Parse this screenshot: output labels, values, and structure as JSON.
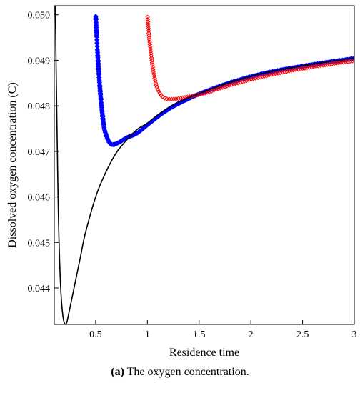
{
  "chart_data": {
    "type": "line",
    "title": "",
    "xlabel": "Residence time",
    "ylabel": "Dissolved oxygen concentration (C)",
    "xlim": [
      0.1,
      3.0
    ],
    "ylim": [
      0.0432,
      0.0502
    ],
    "xticks": [
      {
        "value": 0.5,
        "label": "0.5"
      },
      {
        "value": 1.0,
        "label": "1"
      },
      {
        "value": 1.5,
        "label": "1.5"
      },
      {
        "value": 2.0,
        "label": "2"
      },
      {
        "value": 2.5,
        "label": "2.5"
      },
      {
        "value": 3.0,
        "label": "3"
      }
    ],
    "yticks": [
      {
        "value": 0.044,
        "label": "0.044"
      },
      {
        "value": 0.045,
        "label": "0.045"
      },
      {
        "value": 0.046,
        "label": "0.046"
      },
      {
        "value": 0.047,
        "label": "0.047"
      },
      {
        "value": 0.048,
        "label": "0.048"
      },
      {
        "value": 0.049,
        "label": "0.049"
      },
      {
        "value": 0.05,
        "label": "0.050"
      }
    ],
    "grid": false,
    "series": [
      {
        "color": "#000000",
        "style": "solid-line",
        "x": [
          0.11,
          0.12,
          0.14,
          0.16,
          0.18,
          0.2,
          0.22,
          0.25,
          0.3,
          0.35,
          0.4,
          0.5,
          0.6,
          0.7,
          0.8,
          0.9,
          1.0,
          1.1,
          1.2,
          1.3,
          1.4,
          1.5,
          1.75,
          2.0,
          2.25,
          2.5,
          2.75,
          3.0
        ],
        "y": [
          0.0502,
          0.0485,
          0.0456,
          0.0441,
          0.04345,
          0.04322,
          0.04324,
          0.04355,
          0.0441,
          0.04465,
          0.0452,
          0.046,
          0.04655,
          0.04697,
          0.04725,
          0.04748,
          0.04762,
          0.0478,
          0.04795,
          0.04808,
          0.04818,
          0.04827,
          0.04848,
          0.04865,
          0.04878,
          0.04888,
          0.04897,
          0.04905
        ]
      },
      {
        "color": "#0000ff",
        "style": "diamond-markers",
        "x": [
          0.5,
          0.52,
          0.55,
          0.58,
          0.6,
          0.63,
          0.66,
          0.7,
          0.75,
          0.8,
          0.9,
          1.0,
          1.1,
          1.2,
          1.3,
          1.4,
          1.5,
          1.75,
          2.0,
          2.25,
          2.5,
          2.75,
          3.0
        ],
        "y": [
          0.05,
          0.0491,
          0.04815,
          0.04755,
          0.04737,
          0.0472,
          0.04715,
          0.04717,
          0.04723,
          0.0473,
          0.0474,
          0.04758,
          0.04776,
          0.04792,
          0.04805,
          0.04816,
          0.04826,
          0.04847,
          0.04864,
          0.04877,
          0.04887,
          0.04896,
          0.04904
        ]
      },
      {
        "color": "#ff0000",
        "style": "diamond-markers",
        "x": [
          1.0,
          1.02,
          1.05,
          1.08,
          1.1,
          1.13,
          1.16,
          1.2,
          1.25,
          1.3,
          1.35,
          1.4,
          1.5,
          1.6,
          1.75,
          2.0,
          2.25,
          2.5,
          2.75,
          3.0
        ],
        "y": [
          0.05,
          0.04945,
          0.04888,
          0.0485,
          0.04837,
          0.04824,
          0.04818,
          0.04815,
          0.04815,
          0.04816,
          0.04818,
          0.0482,
          0.04825,
          0.04831,
          0.04842,
          0.04858,
          0.04871,
          0.04882,
          0.04891,
          0.04899
        ]
      }
    ]
  },
  "caption": {
    "label": "(a)",
    "text": " The oxygen concentration."
  }
}
